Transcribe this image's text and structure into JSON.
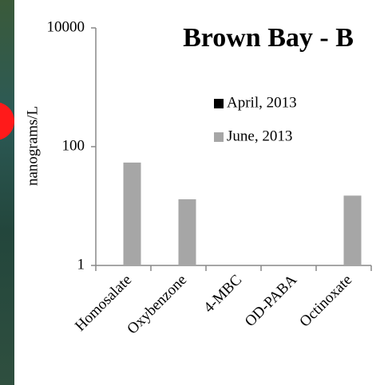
{
  "chart_data": {
    "type": "bar",
    "title": "Brown Bay - B",
    "y_label": "nanograms/L",
    "categories": [
      "Homosalate",
      "Oxybenzone",
      "4-MBC",
      "OD-PABA",
      "Octinoxate"
    ],
    "series": [
      {
        "name": "April, 2013",
        "color": "#000000",
        "values": [
          null,
          null,
          null,
          null,
          null
        ]
      },
      {
        "name": "June, 2013",
        "color": "#a6a6a6",
        "values": [
          54,
          13,
          null,
          null,
          15
        ]
      }
    ],
    "log_scale": true,
    "ylim": [
      1,
      10000
    ],
    "yticks": [
      1,
      100,
      10000
    ],
    "grid": false,
    "legend": "center"
  }
}
